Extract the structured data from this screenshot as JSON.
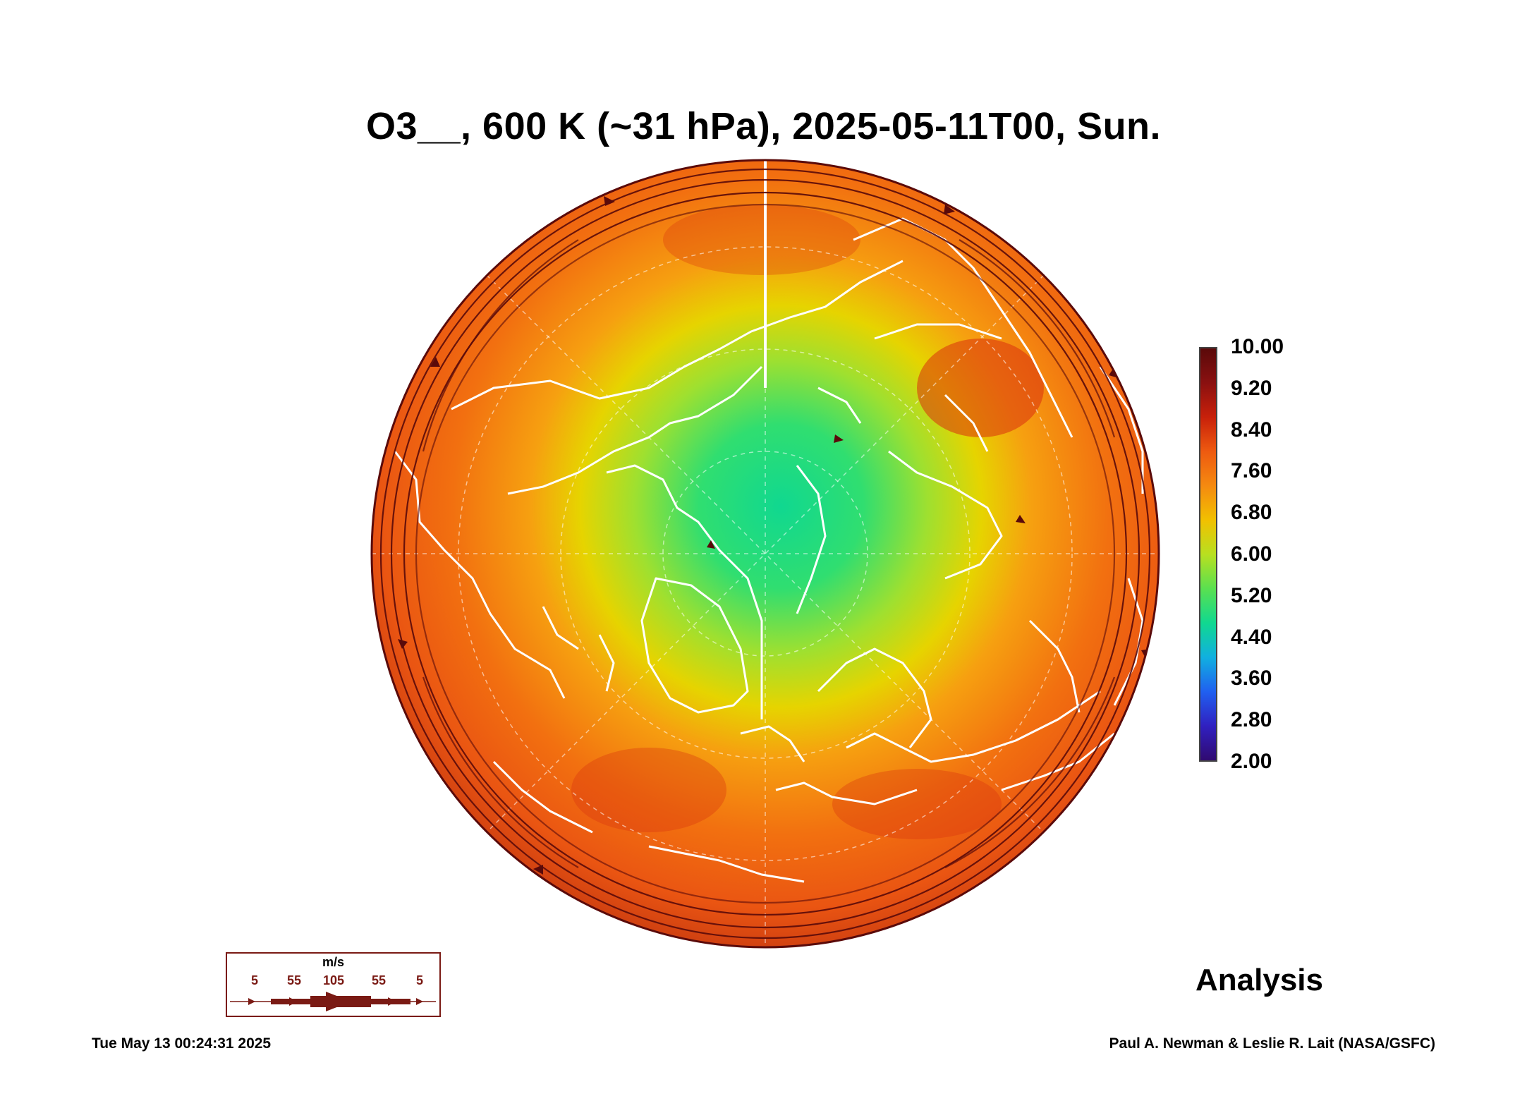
{
  "title": "O3__, 600 K (~31 hPa), 2025-05-11T00, Sun.",
  "colorbar": {
    "ticks": [
      "10.00",
      "9.20",
      "8.40",
      "7.60",
      "6.80",
      "6.00",
      "5.20",
      "4.40",
      "3.60",
      "2.80",
      "2.00"
    ],
    "colors": [
      "#5a0a0a",
      "#8a1010",
      "#c8200a",
      "#ee5a10",
      "#f58a10",
      "#f2c000",
      "#b8e020",
      "#5ae050",
      "#10d890",
      "#10b0e0",
      "#2060f0",
      "#3020c0",
      "#300a70"
    ]
  },
  "wind_legend": {
    "unit": "m/s",
    "labels": [
      "5",
      "55",
      "105",
      "55",
      "5"
    ]
  },
  "label": "Analysis",
  "footer": {
    "timestamp": "Tue May 13 00:24:31 2025",
    "credit": "Paul A. Newman & Leslie R. Lait (NASA/GSFC)"
  }
}
